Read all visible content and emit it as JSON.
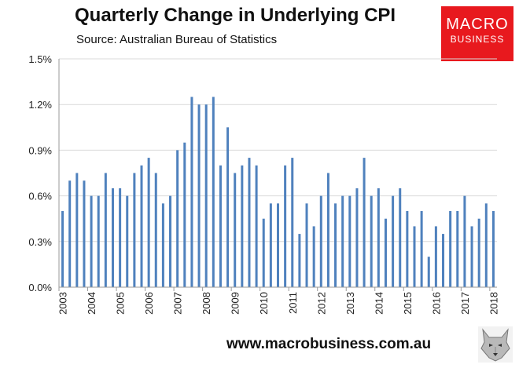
{
  "header": {
    "title": "Quarterly Change in Underlying CPI",
    "subtitle": "Source: Australian Bureau of Statistics"
  },
  "logo": {
    "line1": "MACRO",
    "line2": "BUSINESS",
    "color": "#e8191e"
  },
  "footer": {
    "website": "www.macrobusiness.com.au",
    "mascot_icon": "wolf-icon"
  },
  "chart_data": {
    "type": "bar",
    "title": "Quarterly Change in Underlying CPI",
    "subtitle": "Source: Australian Bureau of Statistics",
    "xlabel": "",
    "ylabel": "",
    "ylim": [
      0,
      1.5
    ],
    "y_ticks": [
      "0.0%",
      "0.3%",
      "0.6%",
      "0.9%",
      "1.2%",
      "1.5%"
    ],
    "y_tick_values": [
      0,
      0.3,
      0.6,
      0.9,
      1.2,
      1.5
    ],
    "x_tick_labels": [
      "2003",
      "2004",
      "2005",
      "2006",
      "2007",
      "2008",
      "2009",
      "2010",
      "2011",
      "2012",
      "2013",
      "2014",
      "2015",
      "2016",
      "2017",
      "2018"
    ],
    "grid": "horizontal",
    "bar_color": "#4f81bd",
    "series": [
      {
        "name": "Quarterly Change in Underlying CPI (%)",
        "values": [
          0.5,
          0.7,
          0.75,
          0.7,
          0.6,
          0.6,
          0.75,
          0.65,
          0.65,
          0.6,
          0.75,
          0.8,
          0.85,
          0.75,
          0.55,
          0.6,
          0.9,
          0.95,
          1.25,
          1.2,
          1.2,
          1.25,
          0.8,
          1.05,
          0.75,
          0.8,
          0.85,
          0.8,
          0.45,
          0.55,
          0.55,
          0.8,
          0.85,
          0.35,
          0.55,
          0.4,
          0.6,
          0.75,
          0.55,
          0.6,
          0.6,
          0.65,
          0.85,
          0.6,
          0.65,
          0.45,
          0.6,
          0.65,
          0.5,
          0.4,
          0.5,
          0.2,
          0.4,
          0.35,
          0.5,
          0.5,
          0.6,
          0.4,
          0.45,
          0.55,
          0.5
        ]
      }
    ]
  }
}
